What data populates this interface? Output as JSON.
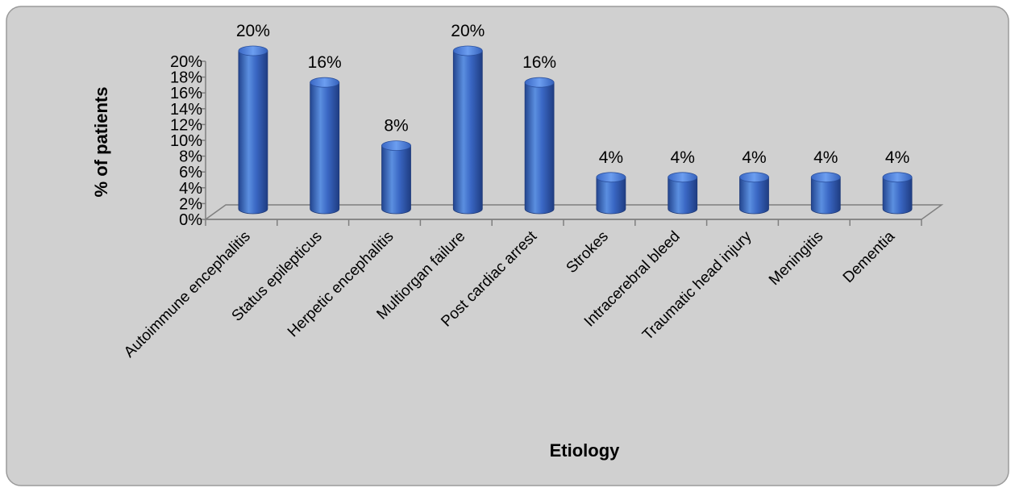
{
  "chart_data": {
    "type": "bar",
    "title": "",
    "xlabel": "Etiology",
    "ylabel": "% of patients",
    "categories": [
      "Autoimmune encephalitis",
      "Status epilepticus",
      "Herpetic encephalitis",
      "Multiorgan failure",
      "Post cardiac arrest",
      "Strokes",
      "Intracerebral bleed",
      "Traumatic head injury",
      "Meningitis",
      "Dementia"
    ],
    "values": [
      20,
      16,
      8,
      20,
      16,
      4,
      4,
      4,
      4,
      4
    ],
    "data_labels": [
      "20%",
      "16%",
      "8%",
      "20%",
      "16%",
      "4%",
      "4%",
      "4%",
      "4%",
      "4%"
    ],
    "y_ticks": [
      "0%",
      "2%",
      "4%",
      "6%",
      "8%",
      "10%",
      "12%",
      "14%",
      "16%",
      "18%",
      "20%"
    ],
    "ylim": [
      0,
      20
    ],
    "grid": false,
    "legend": "none",
    "colors": {
      "bar_light": "#5b8fe0",
      "bar_mid": "#3a67c4",
      "bar_dark": "#23458f",
      "plot_background": "#d0d0d0",
      "frame": "#9a9a9a",
      "axis_line": "#7f7f7f"
    }
  }
}
